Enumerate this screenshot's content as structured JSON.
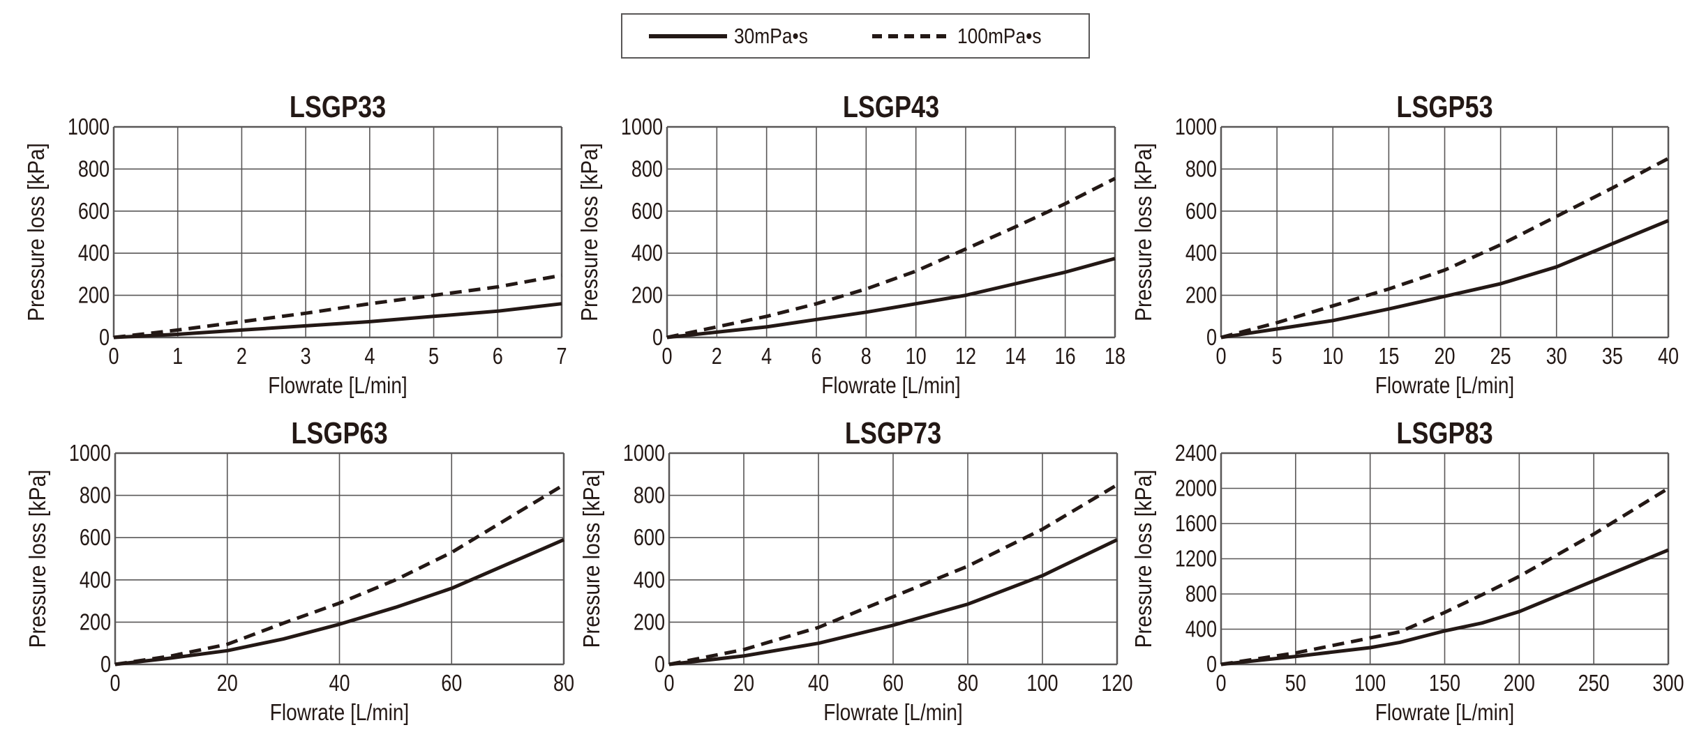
{
  "legend": {
    "items": [
      {
        "label": "30mPa•s",
        "style": "solid"
      },
      {
        "label": "100mPa•s",
        "style": "dashed"
      }
    ]
  },
  "colors": {
    "line": "#231815",
    "grid": "#595757",
    "text": "#231815"
  },
  "chart_data": [
    {
      "type": "line",
      "title": "LSGP33",
      "xlabel": "Flowrate [L/min]",
      "ylabel": "Pressure loss [kPa]",
      "xlim": [
        0,
        7
      ],
      "ylim": [
        0,
        1000
      ],
      "xticks": [
        0,
        1,
        2,
        3,
        4,
        5,
        6,
        7
      ],
      "yticks": [
        0,
        200,
        400,
        600,
        800,
        1000
      ],
      "grid": true,
      "series": [
        {
          "name": "30mPa•s",
          "style": "solid",
          "x": [
            0,
            1,
            2,
            3,
            4,
            5,
            6,
            7
          ],
          "y": [
            0,
            15,
            35,
            55,
            75,
            100,
            125,
            160
          ]
        },
        {
          "name": "100mPa•s",
          "style": "dashed",
          "x": [
            0,
            1,
            2,
            3,
            4,
            5,
            6,
            7
          ],
          "y": [
            0,
            35,
            75,
            115,
            160,
            200,
            240,
            295
          ]
        }
      ]
    },
    {
      "type": "line",
      "title": "LSGP43",
      "xlabel": "Flowrate [L/min]",
      "ylabel": "Pressure loss [kPa]",
      "xlim": [
        0,
        18
      ],
      "ylim": [
        0,
        1000
      ],
      "xticks": [
        0,
        2,
        4,
        6,
        8,
        10,
        12,
        14,
        16,
        18
      ],
      "yticks": [
        0,
        200,
        400,
        600,
        800,
        1000
      ],
      "grid": true,
      "series": [
        {
          "name": "30mPa•s",
          "style": "solid",
          "x": [
            0,
            2,
            4,
            6,
            8,
            10,
            12,
            14,
            16,
            18
          ],
          "y": [
            0,
            25,
            50,
            85,
            120,
            160,
            200,
            255,
            310,
            375
          ]
        },
        {
          "name": "100mPa•s",
          "style": "dashed",
          "x": [
            0,
            2,
            4,
            6,
            8,
            10,
            12,
            14,
            16,
            18
          ],
          "y": [
            0,
            50,
            100,
            160,
            230,
            315,
            420,
            525,
            635,
            755
          ]
        }
      ]
    },
    {
      "type": "line",
      "title": "LSGP53",
      "xlabel": "Flowrate [L/min]",
      "ylabel": "Pressure loss [kPa]",
      "xlim": [
        0,
        40
      ],
      "ylim": [
        0,
        1000
      ],
      "xticks": [
        0,
        5,
        10,
        15,
        20,
        25,
        30,
        35,
        40
      ],
      "yticks": [
        0,
        200,
        400,
        600,
        800,
        1000
      ],
      "grid": true,
      "series": [
        {
          "name": "30mPa•s",
          "style": "solid",
          "x": [
            0,
            5,
            10,
            15,
            20,
            25,
            30,
            35,
            40
          ],
          "y": [
            0,
            40,
            80,
            135,
            195,
            255,
            335,
            445,
            555
          ]
        },
        {
          "name": "100mPa•s",
          "style": "dashed",
          "x": [
            0,
            5,
            10,
            15,
            20,
            25,
            30,
            35,
            40
          ],
          "y": [
            0,
            70,
            150,
            230,
            320,
            440,
            575,
            710,
            850
          ]
        }
      ]
    },
    {
      "type": "line",
      "title": "LSGP63",
      "xlabel": "Flowrate [L/min]",
      "ylabel": "Pressure loss [kPa]",
      "xlim": [
        0,
        80
      ],
      "ylim": [
        0,
        1000
      ],
      "xticks": [
        0,
        20,
        40,
        60,
        80
      ],
      "yticks": [
        0,
        200,
        400,
        600,
        800,
        1000
      ],
      "grid": true,
      "series": [
        {
          "name": "30mPa•s",
          "style": "solid",
          "x": [
            0,
            10,
            20,
            30,
            40,
            50,
            60,
            70,
            80
          ],
          "y": [
            0,
            30,
            65,
            120,
            190,
            270,
            360,
            475,
            590
          ]
        },
        {
          "name": "100mPa•s",
          "style": "dashed",
          "x": [
            0,
            10,
            20,
            30,
            40,
            50,
            60,
            70,
            80
          ],
          "y": [
            0,
            40,
            95,
            195,
            290,
            400,
            530,
            690,
            850
          ]
        }
      ]
    },
    {
      "type": "line",
      "title": "LSGP73",
      "xlabel": "Flowrate [L/min]",
      "ylabel": "Pressure loss [kPa]",
      "xlim": [
        0,
        120
      ],
      "ylim": [
        0,
        1000
      ],
      "xticks": [
        0,
        20,
        40,
        60,
        80,
        100,
        120
      ],
      "yticks": [
        0,
        200,
        400,
        600,
        800,
        1000
      ],
      "grid": true,
      "series": [
        {
          "name": "30mPa•s",
          "style": "solid",
          "x": [
            0,
            20,
            40,
            60,
            80,
            100,
            120
          ],
          "y": [
            0,
            40,
            100,
            185,
            285,
            420,
            590
          ]
        },
        {
          "name": "100mPa•s",
          "style": "dashed",
          "x": [
            0,
            20,
            40,
            60,
            80,
            100,
            120
          ],
          "y": [
            0,
            70,
            175,
            320,
            465,
            640,
            850
          ]
        }
      ]
    },
    {
      "type": "line",
      "title": "LSGP83",
      "xlabel": "Flowrate [L/min]",
      "ylabel": "Pressure loss [kPa]",
      "xlim": [
        0,
        300
      ],
      "ylim": [
        0,
        2400
      ],
      "xticks": [
        0,
        50,
        100,
        150,
        200,
        250,
        300
      ],
      "yticks": [
        0,
        400,
        800,
        1200,
        1600,
        2000,
        2400
      ],
      "grid": true,
      "series": [
        {
          "name": "30mPa•s",
          "style": "solid",
          "x": [
            0,
            50,
            100,
            120,
            150,
            175,
            200,
            250,
            300
          ],
          "y": [
            0,
            90,
            190,
            250,
            380,
            470,
            600,
            950,
            1300
          ]
        },
        {
          "name": "100mPa•s",
          "style": "dashed",
          "x": [
            0,
            50,
            100,
            120,
            150,
            175,
            200,
            250,
            300
          ],
          "y": [
            0,
            130,
            300,
            370,
            590,
            790,
            1000,
            1480,
            2000
          ]
        }
      ]
    }
  ]
}
